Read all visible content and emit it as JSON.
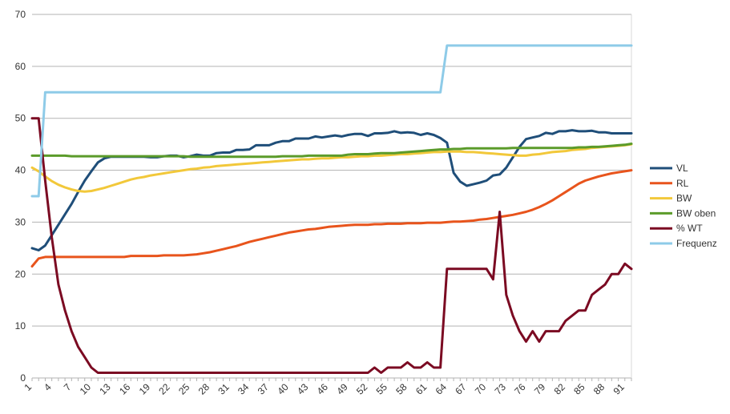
{
  "chart_data": {
    "type": "line",
    "title": "",
    "xlabel": "",
    "ylabel": "",
    "ylim": [
      0,
      70
    ],
    "yticks": [
      0,
      10,
      20,
      30,
      40,
      50,
      60,
      70
    ],
    "x": [
      1,
      2,
      3,
      4,
      5,
      6,
      7,
      8,
      9,
      10,
      11,
      12,
      13,
      14,
      15,
      16,
      17,
      18,
      19,
      20,
      21,
      22,
      23,
      24,
      25,
      26,
      27,
      28,
      29,
      30,
      31,
      32,
      33,
      34,
      35,
      36,
      37,
      38,
      39,
      40,
      41,
      42,
      43,
      44,
      45,
      46,
      47,
      48,
      49,
      50,
      51,
      52,
      53,
      54,
      55,
      56,
      57,
      58,
      59,
      60,
      61,
      62,
      63,
      64,
      65,
      66,
      67,
      68,
      69,
      70,
      71,
      72,
      73,
      74,
      75,
      76,
      77,
      78,
      79,
      80,
      81,
      82,
      83,
      84,
      85,
      86,
      87,
      88,
      89,
      90,
      91,
      92
    ],
    "xtick_labels": [
      "1",
      "4",
      "7",
      "10",
      "13",
      "16",
      "19",
      "22",
      "25",
      "28",
      "31",
      "34",
      "37",
      "40",
      "43",
      "46",
      "49",
      "52",
      "55",
      "58",
      "61",
      "64",
      "67",
      "70",
      "73",
      "76",
      "79",
      "82",
      "85",
      "88",
      "91"
    ],
    "xtick_values": [
      1,
      4,
      7,
      10,
      13,
      16,
      19,
      22,
      25,
      28,
      31,
      34,
      37,
      40,
      43,
      46,
      49,
      52,
      55,
      58,
      61,
      64,
      67,
      70,
      73,
      76,
      79,
      82,
      85,
      88,
      91
    ],
    "grid": true,
    "legend_position": "right",
    "series": [
      {
        "name": "VL",
        "color": "#1f4e79",
        "values": [
          25,
          24.6,
          25.5,
          27.5,
          29.5,
          31.5,
          33.5,
          35.8,
          38,
          39.8,
          41.5,
          42.3,
          42.6,
          42.6,
          42.6,
          42.6,
          42.6,
          42.6,
          42.5,
          42.5,
          42.7,
          42.8,
          42.8,
          42.5,
          42.7,
          43,
          42.8,
          42.8,
          43.3,
          43.4,
          43.4,
          43.9,
          43.9,
          44,
          44.8,
          44.8,
          44.8,
          45.3,
          45.6,
          45.6,
          46.1,
          46.1,
          46.1,
          46.5,
          46.3,
          46.5,
          46.7,
          46.5,
          46.8,
          47,
          47,
          46.6,
          47.1,
          47.1,
          47.2,
          47.5,
          47.2,
          47.3,
          47.2,
          46.8,
          47.1,
          46.8,
          46.2,
          45.3,
          39.5,
          37.8,
          37,
          37.3,
          37.6,
          38,
          39,
          39.2,
          40.5,
          42.5,
          44.5,
          46,
          46.3,
          46.6,
          47.2,
          47,
          47.5,
          47.5,
          47.7,
          47.5,
          47.5,
          47.6,
          47.3,
          47.3,
          47.1,
          47.1,
          47.1,
          47.1
        ]
      },
      {
        "name": "RL",
        "color": "#e8541c",
        "values": [
          21.5,
          23,
          23.3,
          23.3,
          23.3,
          23.3,
          23.3,
          23.3,
          23.3,
          23.3,
          23.3,
          23.3,
          23.3,
          23.3,
          23.3,
          23.5,
          23.5,
          23.5,
          23.5,
          23.5,
          23.6,
          23.6,
          23.6,
          23.6,
          23.7,
          23.8,
          24,
          24.2,
          24.5,
          24.8,
          25.1,
          25.4,
          25.8,
          26.2,
          26.5,
          26.8,
          27.1,
          27.4,
          27.7,
          28,
          28.2,
          28.4,
          28.6,
          28.7,
          28.9,
          29.1,
          29.2,
          29.3,
          29.4,
          29.5,
          29.5,
          29.5,
          29.6,
          29.6,
          29.7,
          29.7,
          29.7,
          29.8,
          29.8,
          29.8,
          29.9,
          29.9,
          29.9,
          30,
          30.1,
          30.1,
          30.2,
          30.3,
          30.5,
          30.6,
          30.8,
          31,
          31.2,
          31.4,
          31.7,
          32,
          32.4,
          32.9,
          33.5,
          34.2,
          35,
          35.8,
          36.6,
          37.4,
          38,
          38.4,
          38.8,
          39.1,
          39.4,
          39.6,
          39.8,
          40
        ]
      },
      {
        "name": "BW",
        "color": "#f2c83a",
        "values": [
          40.5,
          39.8,
          38.8,
          37.9,
          37.2,
          36.7,
          36.3,
          36,
          35.9,
          36,
          36.3,
          36.6,
          37,
          37.4,
          37.8,
          38.2,
          38.5,
          38.7,
          39,
          39.2,
          39.4,
          39.6,
          39.8,
          40,
          40.2,
          40.3,
          40.5,
          40.6,
          40.8,
          40.9,
          41,
          41.1,
          41.2,
          41.3,
          41.4,
          41.5,
          41.6,
          41.7,
          41.8,
          41.9,
          42,
          42.1,
          42.1,
          42.2,
          42.3,
          42.3,
          42.4,
          42.5,
          42.5,
          42.6,
          42.7,
          42.7,
          42.8,
          42.8,
          42.9,
          43,
          43.1,
          43.1,
          43.2,
          43.3,
          43.4,
          43.5,
          43.5,
          43.6,
          43.6,
          43.6,
          43.5,
          43.5,
          43.4,
          43.3,
          43.2,
          43.1,
          43,
          42.9,
          42.8,
          42.8,
          43,
          43.1,
          43.3,
          43.5,
          43.6,
          43.7,
          43.9,
          44,
          44.1,
          44.3,
          44.4,
          44.5,
          44.6,
          44.7,
          44.8,
          45
        ]
      },
      {
        "name": "BW oben",
        "color": "#5b9b2a",
        "values": [
          42.8,
          42.8,
          42.8,
          42.8,
          42.8,
          42.8,
          42.7,
          42.7,
          42.7,
          42.7,
          42.7,
          42.7,
          42.7,
          42.7,
          42.7,
          42.7,
          42.7,
          42.7,
          42.7,
          42.7,
          42.7,
          42.7,
          42.7,
          42.7,
          42.6,
          42.6,
          42.6,
          42.6,
          42.6,
          42.6,
          42.6,
          42.6,
          42.6,
          42.6,
          42.6,
          42.6,
          42.6,
          42.6,
          42.7,
          42.7,
          42.7,
          42.7,
          42.8,
          42.8,
          42.8,
          42.8,
          42.8,
          42.8,
          43,
          43.1,
          43.1,
          43.1,
          43.2,
          43.3,
          43.3,
          43.3,
          43.4,
          43.5,
          43.6,
          43.7,
          43.8,
          43.9,
          44,
          44,
          44.1,
          44.1,
          44.2,
          44.2,
          44.2,
          44.2,
          44.2,
          44.2,
          44.2,
          44.3,
          44.3,
          44.3,
          44.3,
          44.3,
          44.3,
          44.3,
          44.3,
          44.3,
          44.3,
          44.4,
          44.4,
          44.5,
          44.5,
          44.6,
          44.7,
          44.8,
          44.9,
          45.1
        ]
      },
      {
        "name": "% WT",
        "color": "#7b0a22",
        "values": [
          50,
          50,
          38,
          27,
          18,
          13,
          9,
          6,
          4,
          2,
          1,
          1,
          1,
          1,
          1,
          1,
          1,
          1,
          1,
          1,
          1,
          1,
          1,
          1,
          1,
          1,
          1,
          1,
          1,
          1,
          1,
          1,
          1,
          1,
          1,
          1,
          1,
          1,
          1,
          1,
          1,
          1,
          1,
          1,
          1,
          1,
          1,
          1,
          1,
          1,
          1,
          1,
          2,
          1,
          2,
          2,
          2,
          3,
          2,
          2,
          3,
          2,
          2,
          21,
          21,
          21,
          21,
          21,
          21,
          21,
          19,
          32,
          16,
          12,
          9,
          7,
          9,
          7,
          9,
          9,
          9,
          11,
          12,
          13,
          13,
          16,
          17,
          18,
          20,
          20,
          22,
          21
        ]
      },
      {
        "name": "Frequenz",
        "color": "#8ecbe8",
        "values": [
          35,
          35,
          55,
          55,
          55,
          55,
          55,
          55,
          55,
          55,
          55,
          55,
          55,
          55,
          55,
          55,
          55,
          55,
          55,
          55,
          55,
          55,
          55,
          55,
          55,
          55,
          55,
          55,
          55,
          55,
          55,
          55,
          55,
          55,
          55,
          55,
          55,
          55,
          55,
          55,
          55,
          55,
          55,
          55,
          55,
          55,
          55,
          55,
          55,
          55,
          55,
          55,
          55,
          55,
          55,
          55,
          55,
          55,
          55,
          55,
          55,
          55,
          55,
          64,
          64,
          64,
          64,
          64,
          64,
          64,
          64,
          64,
          64,
          64,
          64,
          64,
          64,
          64,
          64,
          64,
          64,
          64,
          64,
          64,
          64,
          64,
          64,
          64,
          64,
          64,
          64,
          64
        ]
      }
    ]
  }
}
